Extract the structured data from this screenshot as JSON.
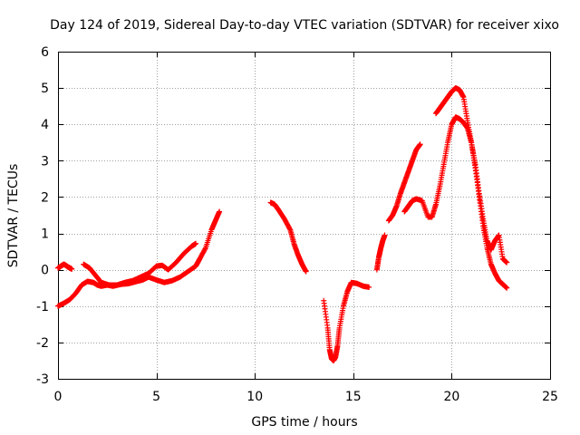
{
  "chart_data": {
    "type": "scatter",
    "title": "Day 124 of 2019, Sidereal Day-to-day VTEC variation (SDTVAR) for receiver xixo",
    "xlabel": "GPS time / hours",
    "ylabel": "SDTVAR / TECUs",
    "xlim": [
      0,
      25
    ],
    "ylim": [
      -3,
      6
    ],
    "xticks": [
      0,
      5,
      10,
      15,
      20,
      25
    ],
    "yticks": [
      -3,
      -2,
      -1,
      0,
      1,
      2,
      3,
      4,
      5,
      6
    ],
    "grid": true,
    "marker": "plus",
    "color": "#ff0000",
    "series": [
      {
        "name": "a",
        "x": [
          0.0,
          0.1,
          0.2,
          0.3,
          0.4,
          0.5,
          0.6,
          0.7
        ],
        "y": [
          0.05,
          0.08,
          0.12,
          0.15,
          0.12,
          0.08,
          0.05,
          0.02
        ]
      },
      {
        "name": "b",
        "x": [
          0.0,
          0.3,
          0.6,
          0.9,
          1.2,
          1.5,
          1.8,
          2.0,
          2.2,
          2.5,
          2.8,
          3.2,
          3.6,
          4.0,
          4.3,
          4.6,
          5.0,
          5.4,
          5.8,
          6.2,
          6.6,
          7.0,
          7.2,
          7.5,
          7.8,
          8.0,
          8.2
        ],
        "y": [
          -1.0,
          -0.92,
          -0.82,
          -0.65,
          -0.42,
          -0.32,
          -0.35,
          -0.42,
          -0.45,
          -0.42,
          -0.45,
          -0.4,
          -0.38,
          -0.32,
          -0.28,
          -0.2,
          -0.28,
          -0.35,
          -0.3,
          -0.2,
          -0.05,
          0.1,
          0.3,
          0.6,
          1.1,
          1.35,
          1.6
        ]
      },
      {
        "name": "c",
        "x": [
          1.3,
          1.6,
          1.9,
          2.2,
          2.6,
          3.0,
          3.4,
          3.8,
          4.2,
          4.6,
          5.0,
          5.3,
          5.6,
          6.0,
          6.4,
          6.8,
          7.0
        ],
        "y": [
          0.15,
          0.05,
          -0.15,
          -0.35,
          -0.42,
          -0.42,
          -0.35,
          -0.3,
          -0.2,
          -0.1,
          0.1,
          0.12,
          0.0,
          0.2,
          0.45,
          0.65,
          0.72
        ]
      },
      {
        "name": "d",
        "x": [
          10.8,
          11.0,
          11.2,
          11.5,
          11.8,
          12.0,
          12.2,
          12.4,
          12.6
        ],
        "y": [
          1.85,
          1.8,
          1.65,
          1.4,
          1.1,
          0.7,
          0.4,
          0.15,
          -0.05
        ]
      },
      {
        "name": "e",
        "x": [
          13.5,
          13.7,
          13.8,
          13.9,
          14.0,
          14.1,
          14.2,
          14.3,
          14.5,
          14.7,
          14.9,
          15.2,
          15.5,
          15.8
        ],
        "y": [
          -0.85,
          -1.6,
          -2.2,
          -2.45,
          -2.5,
          -2.4,
          -2.1,
          -1.6,
          -1.0,
          -0.6,
          -0.35,
          -0.38,
          -0.45,
          -0.48
        ]
      },
      {
        "name": "f",
        "x": [
          16.2,
          16.3,
          16.4,
          16.5,
          16.6
        ],
        "y": [
          0.0,
          0.35,
          0.6,
          0.8,
          0.95
        ]
      },
      {
        "name": "g",
        "x": [
          16.8,
          17.0,
          17.2,
          17.4,
          17.6,
          17.8,
          18.0,
          18.2,
          18.4
        ],
        "y": [
          1.35,
          1.5,
          1.75,
          2.1,
          2.4,
          2.7,
          3.0,
          3.3,
          3.45
        ]
      },
      {
        "name": "h",
        "x": [
          17.6,
          17.8,
          18.0,
          18.2,
          18.5,
          18.8,
          19.0,
          19.2,
          19.4,
          19.6,
          19.8,
          20.0,
          20.2,
          20.4,
          20.6,
          20.8,
          21.0,
          21.2,
          21.4,
          21.6,
          21.8,
          22.0,
          22.2,
          22.4,
          22.6,
          22.8
        ],
        "y": [
          1.6,
          1.75,
          1.9,
          1.95,
          1.9,
          1.45,
          1.45,
          1.8,
          2.3,
          2.9,
          3.5,
          4.0,
          4.2,
          4.15,
          4.05,
          3.9,
          3.5,
          2.9,
          2.1,
          1.4,
          0.8,
          0.55,
          0.8,
          0.95,
          0.3,
          0.2
        ]
      },
      {
        "name": "i",
        "x": [
          19.2,
          19.4,
          19.6,
          19.8,
          20.0,
          20.2,
          20.4,
          20.6,
          20.8,
          21.0,
          21.2,
          21.4,
          21.6,
          21.8,
          22.0,
          22.2,
          22.4,
          22.6,
          22.8
        ],
        "y": [
          4.3,
          4.45,
          4.6,
          4.75,
          4.9,
          5.0,
          4.95,
          4.75,
          4.1,
          3.5,
          2.8,
          2.0,
          1.2,
          0.6,
          0.15,
          -0.1,
          -0.3,
          -0.4,
          -0.5
        ]
      }
    ]
  }
}
